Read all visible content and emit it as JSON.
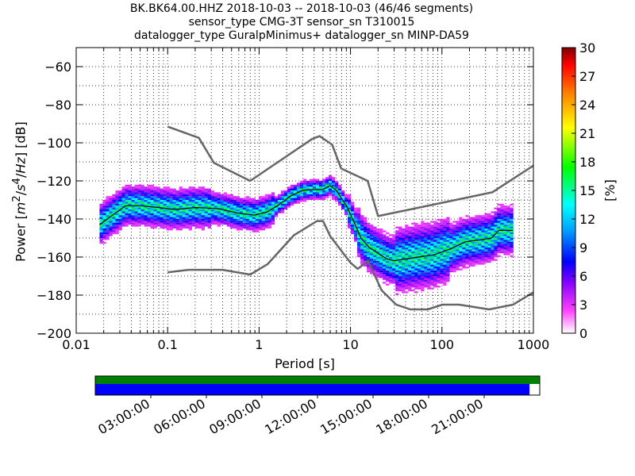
{
  "chart_data": {
    "type": "heatmap",
    "title_lines": [
      "BK.BK64.00.HHZ   2018-10-03 -- 2018-10-03  (46/46 segments)",
      "sensor_type CMG-3T sensor_sn T310015",
      "datalogger_type GuralpMinimus+ datalogger_sn MINP-DA59"
    ],
    "xlabel": "Period [s]",
    "ylabel": "Power [m²/s⁴/Hz] [dB]",
    "xscale": "log",
    "xlim": [
      0.01,
      1000
    ],
    "ylim": [
      -200,
      -50
    ],
    "x_ticks": [
      0.01,
      0.1,
      1,
      10,
      100,
      1000
    ],
    "x_tick_labels": [
      "0.01",
      "0.1",
      "1",
      "10",
      "100",
      "1000"
    ],
    "y_ticks": [
      -200,
      -180,
      -160,
      -140,
      -120,
      -100,
      -80,
      -60
    ],
    "y_tick_labels": [
      "−200",
      "−180",
      "−160",
      "−140",
      "−120",
      "−100",
      "−80",
      "−60"
    ],
    "colorbar": {
      "label": "[%]",
      "range": [
        0,
        30
      ],
      "ticks": [
        0,
        3,
        6,
        9,
        12,
        15,
        18,
        21,
        24,
        27,
        30
      ]
    },
    "noise_model_high": {
      "x": [
        0.1,
        0.22,
        0.32,
        0.8,
        3.8,
        4.6,
        6.3,
        7.9,
        15.4,
        20,
        354.8,
        1000
      ],
      "y": [
        -91.5,
        -97.4,
        -110.5,
        -120,
        -98,
        -96.5,
        -101,
        -113.5,
        -120,
        -138.5,
        -126,
        -112
      ]
    },
    "noise_model_low": {
      "x": [
        0.1,
        0.17,
        0.4,
        0.8,
        1.24,
        2.4,
        4.3,
        5,
        6,
        10,
        12,
        15.6,
        21.9,
        31.6,
        45,
        70,
        101,
        154,
        328,
        600,
        1000
      ],
      "y": [
        -168,
        -166.7,
        -166.7,
        -169.2,
        -163.7,
        -148.6,
        -141.1,
        -141.1,
        -149,
        -163,
        -166.2,
        -162.1,
        -177.5,
        -185,
        -187.5,
        -187.5,
        -185,
        -185,
        -187.5,
        -185,
        -178.5
      ]
    },
    "mode_curve": {
      "x": [
        0.018,
        0.025,
        0.035,
        0.05,
        0.08,
        0.12,
        0.2,
        0.35,
        0.6,
        0.9,
        1.2,
        1.6,
        2.2,
        3,
        4,
        5,
        6,
        7,
        9,
        11,
        13,
        16,
        20,
        25,
        30,
        40,
        55,
        80,
        120,
        180,
        260,
        350,
        420,
        600
      ],
      "y": [
        -143,
        -138,
        -133,
        -133,
        -134,
        -135,
        -134,
        -134.5,
        -137,
        -138,
        -136.5,
        -133,
        -128,
        -125,
        -124.5,
        -124.5,
        -122.5,
        -125,
        -133,
        -142,
        -150,
        -155,
        -158,
        -161,
        -162,
        -161,
        -160,
        -159,
        -156,
        -152,
        -151,
        -150,
        -146,
        -146
      ]
    },
    "timeline": {
      "tick_labels": [
        "03:00:00",
        "06:00:00",
        "09:00:00",
        "12:00:00",
        "15:00:00",
        "18:00:00",
        "21:00:00"
      ],
      "coverage_fraction": 0.977,
      "colors": {
        "top_bar": "#008000",
        "coverage": "#0000ff"
      }
    }
  }
}
